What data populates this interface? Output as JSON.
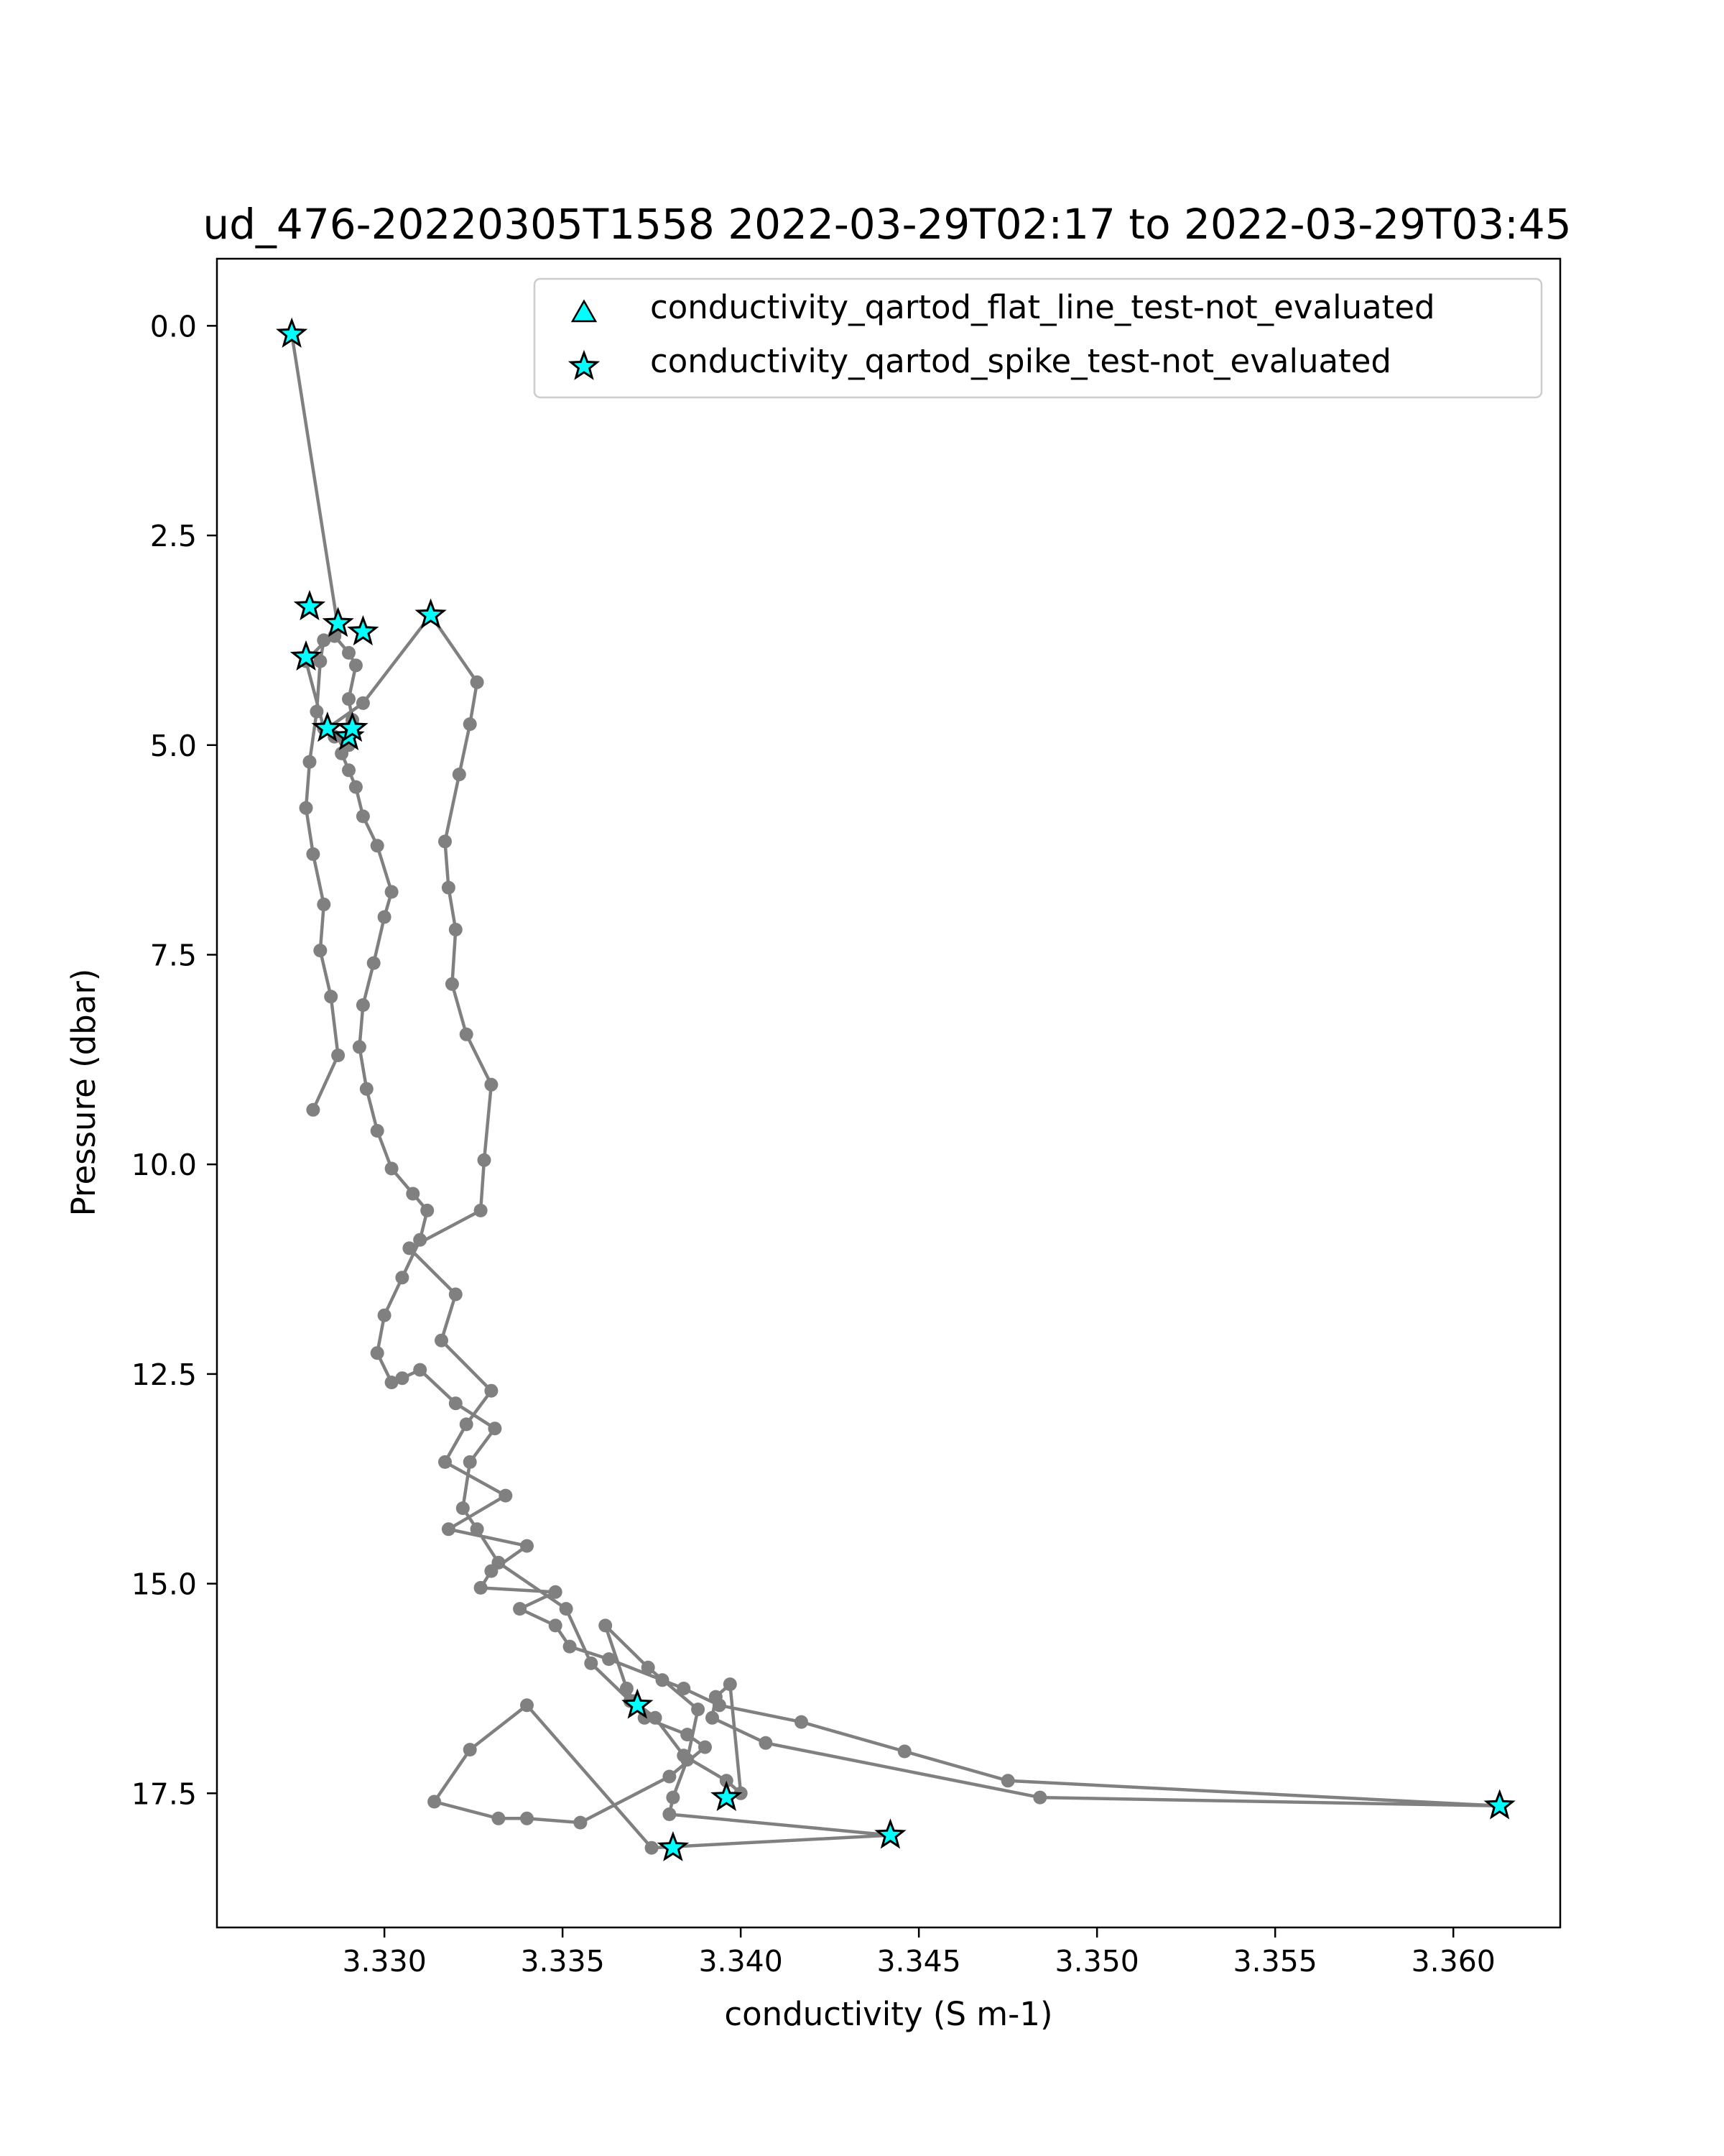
{
  "chart_data": {
    "type": "line",
    "title": "ud_476-20220305T1558 2022-03-29T02:17 to 2022-03-29T03:45",
    "xlabel": "conductivity (S m-1)",
    "ylabel": "Pressure (dbar)",
    "xlim": [
      3.3253,
      3.363
    ],
    "ylim": [
      19.1,
      -0.8
    ],
    "y_inverted": true,
    "grid": false,
    "legend_position": "top-right",
    "x_ticks": [
      "3.330",
      "3.335",
      "3.340",
      "3.345",
      "3.350",
      "3.355",
      "3.360"
    ],
    "y_ticks": [
      "0.0",
      "2.5",
      "5.0",
      "7.5",
      "10.0",
      "12.5",
      "15.0",
      "17.5"
    ],
    "colors": {
      "profile_line": "#808080",
      "marker_fill": "#00ffff",
      "marker_edge": "#000000"
    },
    "series": [
      {
        "name": "profile",
        "x": [
          3.3274,
          3.3287,
          3.3278,
          3.3283,
          3.3286,
          3.329,
          3.3284,
          3.3294,
          3.3313,
          3.3326,
          3.3324,
          3.3321,
          3.3317,
          3.3318,
          3.332,
          3.3319,
          3.3323,
          3.333,
          3.3328,
          3.3327,
          3.3307,
          3.332,
          3.3316,
          3.333,
          3.3323,
          3.3317,
          3.3334,
          3.3318,
          3.334,
          3.333,
          3.3327,
          3.3348,
          3.3338,
          3.3348,
          3.3352,
          3.3363,
          3.3378,
          3.3384,
          3.3394,
          3.3417,
          3.3446,
          3.3475,
          3.3613,
          3.3484,
          3.3407,
          3.3392,
          3.3393,
          3.3397,
          3.34,
          3.3396,
          3.3384,
          3.3376,
          3.337,
          3.3368,
          3.3362,
          3.3374,
          3.3388,
          3.3385,
          3.3381,
          3.338,
          3.3442,
          3.3375,
          3.334,
          3.3324,
          3.3314,
          3.3332,
          3.334,
          3.3355,
          3.338,
          3.339,
          3.3385,
          3.3373,
          3.3369,
          3.3358,
          3.3351,
          3.3332,
          3.3326,
          3.3322,
          3.3324,
          3.3331,
          3.332,
          3.331,
          3.3305,
          3.3302,
          3.3298,
          3.33,
          3.3305,
          3.331,
          3.3312,
          3.3308,
          3.3302,
          3.3298,
          3.3295,
          3.3293,
          3.3294,
          3.3297,
          3.33,
          3.3302,
          3.3298,
          3.3294,
          3.3292,
          3.329,
          3.3288,
          3.3289,
          3.3291,
          3.329,
          3.3292,
          3.329,
          3.3286,
          3.3283,
          3.3282,
          3.3281,
          3.3279,
          3.3278,
          3.328,
          3.3283,
          3.3282,
          3.3285,
          3.3287,
          3.328
        ],
        "y": [
          0.1,
          3.6,
          4.0,
          4.8,
          4.9,
          5.0,
          4.8,
          4.5,
          3.45,
          4.25,
          4.75,
          5.35,
          6.15,
          6.7,
          7.2,
          7.85,
          8.45,
          9.05,
          9.95,
          10.55,
          11.0,
          11.55,
          12.1,
          12.7,
          13.1,
          13.55,
          13.95,
          14.35,
          14.55,
          14.85,
          15.05,
          15.1,
          15.3,
          15.5,
          15.75,
          15.9,
          16.15,
          16.25,
          16.45,
          16.65,
          17.0,
          17.35,
          17.65,
          17.55,
          16.9,
          16.6,
          16.35,
          16.2,
          17.5,
          17.35,
          17.05,
          16.6,
          16.4,
          16.25,
          15.5,
          16.0,
          16.5,
          17.1,
          17.55,
          17.75,
          18.0,
          18.15,
          16.45,
          16.98,
          17.6,
          17.8,
          17.8,
          17.85,
          17.3,
          16.95,
          16.8,
          16.6,
          16.4,
          15.95,
          15.3,
          14.75,
          14.35,
          14.1,
          13.55,
          13.15,
          12.85,
          12.45,
          12.55,
          12.6,
          12.25,
          11.8,
          11.35,
          10.9,
          10.55,
          10.35,
          10.05,
          9.6,
          9.1,
          8.6,
          8.1,
          7.6,
          7.05,
          6.75,
          6.2,
          5.85,
          5.5,
          5.3,
          5.1,
          4.95,
          4.7,
          4.45,
          4.05,
          3.9,
          3.7,
          3.75,
          4.0,
          4.6,
          5.2,
          5.75,
          6.3,
          6.9,
          7.45,
          8.0,
          8.7,
          9.35
        ]
      }
    ],
    "qc_series": [
      {
        "name": "conductivity_qartod_flat_line_test-not_evaluated",
        "marker": "triangle",
        "x": [],
        "y": []
      },
      {
        "name": "conductivity_qartod_spike_test-not_evaluated",
        "marker": "star",
        "x": [
          3.3274,
          3.3279,
          3.3287,
          3.3294,
          3.3313,
          3.3278,
          3.3284,
          3.329,
          3.3291,
          3.3371,
          3.3396,
          3.3381,
          3.3442,
          3.3613
        ],
        "y": [
          0.1,
          3.35,
          3.55,
          3.65,
          3.45,
          3.95,
          4.8,
          4.9,
          4.8,
          16.45,
          17.55,
          18.15,
          18.0,
          17.65
        ]
      }
    ]
  }
}
